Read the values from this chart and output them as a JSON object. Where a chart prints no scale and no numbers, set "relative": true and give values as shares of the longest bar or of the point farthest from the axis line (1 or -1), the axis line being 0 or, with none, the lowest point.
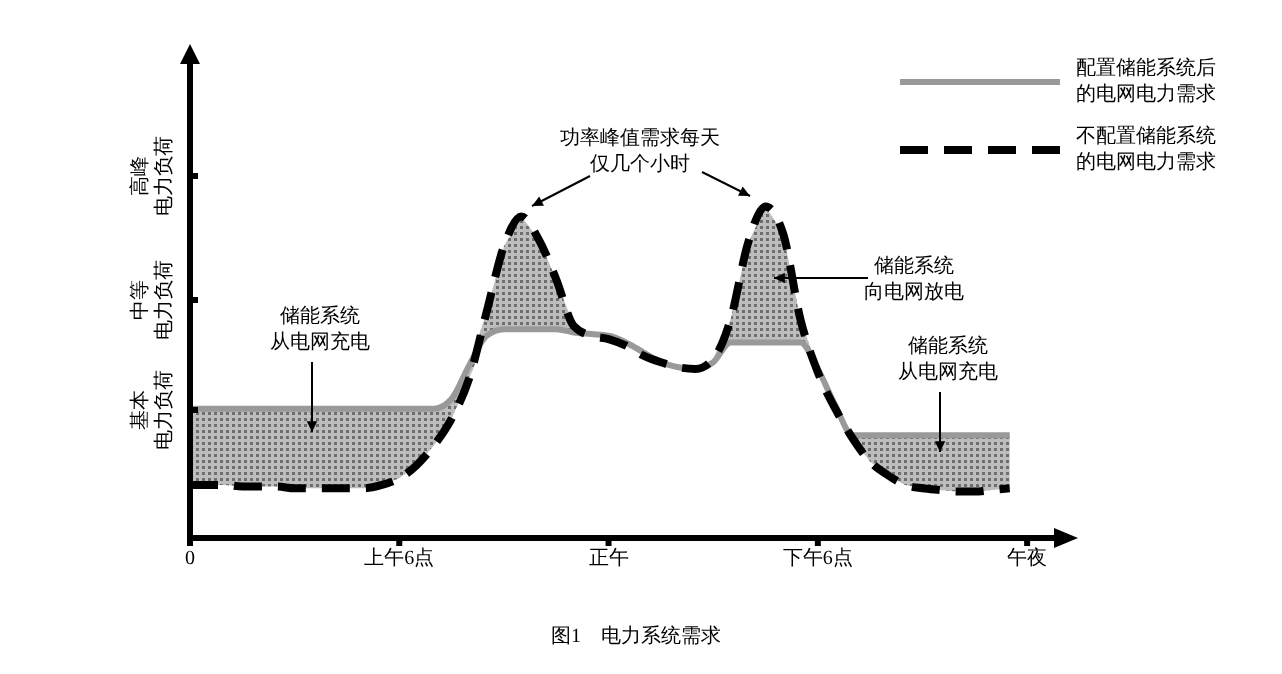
{
  "chart_data": {
    "type": "line",
    "relative": true,
    "legend": "top right",
    "marker": "none",
    "grid": false,
    "categories": [
      "0",
      null,
      null,
      null,
      null,
      null,
      null,
      null,
      null,
      null,
      null,
      null,
      "上午6点",
      null,
      null,
      null,
      null,
      null,
      null,
      null,
      null,
      null,
      null,
      null,
      "正午",
      null,
      null,
      null,
      null,
      null,
      null,
      null,
      null,
      null,
      null,
      null,
      "下午6点",
      null,
      null,
      null,
      null,
      null,
      null,
      null,
      null,
      null,
      null,
      null,
      "午夜"
    ],
    "series": [
      {
        "name": "配置储能系统后的电网电力需求",
        "color": "#999999",
        "line_style": "solid",
        "lower": [
          0.16,
          0.16,
          0.16,
          0.155,
          0.155,
          0.155,
          0.15,
          0.15,
          0.15,
          0.15,
          0.15,
          0.16,
          0.18,
          0.22,
          0.28,
          0.36,
          0.48,
          0.61,
          0.63,
          0.63,
          0.63,
          0.63,
          0.62,
          0.61,
          0.6,
          0.58,
          0.55,
          0.53,
          0.515,
          0.51,
          0.53,
          0.59,
          0.59,
          0.59,
          0.59,
          0.59,
          0.5,
          0.39,
          0.3,
          0.23,
          0.19,
          0.16,
          0.15,
          0.145,
          0.14,
          0.14,
          0.145,
          0.15,
          null
        ],
        "upper": [
          0.39,
          0.39,
          0.39,
          0.39,
          0.39,
          0.39,
          0.39,
          0.39,
          0.39,
          0.39,
          0.39,
          0.39,
          0.39,
          0.39,
          0.39,
          0.42,
          0.52,
          0.68,
          0.88,
          0.97,
          0.9,
          0.78,
          0.64,
          0.615,
          0.61,
          0.59,
          0.56,
          0.53,
          0.515,
          0.51,
          0.54,
          0.66,
          0.89,
          1.0,
          0.92,
          0.66,
          0.51,
          0.4,
          0.31,
          0.31,
          0.31,
          0.31,
          0.31,
          0.31,
          0.31,
          0.31,
          0.31,
          0.31,
          null
        ],
        "values": [
          0.39,
          0.39,
          0.39,
          0.39,
          0.39,
          0.39,
          0.39,
          0.39,
          0.39,
          0.39,
          0.39,
          0.39,
          0.39,
          0.39,
          0.39,
          0.42,
          0.52,
          0.61,
          0.63,
          0.63,
          0.63,
          0.63,
          0.62,
          0.615,
          0.61,
          0.59,
          0.56,
          0.53,
          0.515,
          0.51,
          0.53,
          0.59,
          0.59,
          0.59,
          0.59,
          0.59,
          0.51,
          0.4,
          0.31,
          0.31,
          0.31,
          0.31,
          0.31,
          0.31,
          0.31,
          0.31,
          0.31,
          0.31,
          null
        ]
      },
      {
        "name": "不配置储能系统的电网电力需求",
        "color": "#000000",
        "line_style": "dashed",
        "values": [
          0.16,
          0.16,
          0.16,
          0.155,
          0.155,
          0.155,
          0.15,
          0.15,
          0.15,
          0.15,
          0.15,
          0.16,
          0.18,
          0.22,
          0.28,
          0.36,
          0.48,
          0.68,
          0.88,
          0.97,
          0.9,
          0.78,
          0.64,
          0.61,
          0.6,
          0.58,
          0.55,
          0.53,
          0.515,
          0.51,
          0.54,
          0.66,
          0.89,
          1.0,
          0.92,
          0.66,
          0.5,
          0.39,
          0.3,
          0.23,
          0.19,
          0.16,
          0.15,
          0.145,
          0.14,
          0.14,
          0.145,
          0.15,
          null
        ]
      }
    ],
    "annotations": [
      "功率峰值需求每天仅几个小时",
      "储能系统向电网放电",
      "储能系统从电网充电",
      "储能系统从电网充电",
      "基本电力负荷",
      "中等电力负荷",
      "高峰电力负荷",
      "图1　电力系统需求"
    ]
  }
}
